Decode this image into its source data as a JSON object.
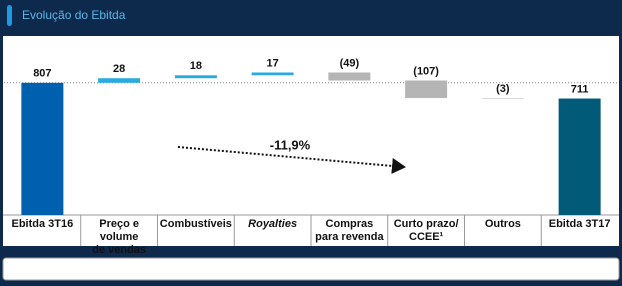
{
  "chart_data": {
    "type": "waterfall",
    "title": "Evolução do Ebitda",
    "categories": [
      "Ebitda 3T16",
      "Preço e volume\nde vendas",
      "Combustíveis",
      "Royalties",
      "Compras\npara revenda",
      "Curto prazo/\nCCEE¹",
      "Outros",
      "Ebitda 3T17"
    ],
    "values": [
      807,
      28,
      18,
      17,
      -49,
      -107,
      -3,
      711
    ],
    "value_labels": [
      "807",
      "28",
      "18",
      "17",
      "(49)",
      "(107)",
      "(3)",
      "711"
    ],
    "totals": [
      true,
      false,
      false,
      false,
      false,
      false,
      false,
      true
    ],
    "colors": [
      "#0060b0",
      "#29abe2",
      "#29abe2",
      "#29abe2",
      "#b5b5b5",
      "#b5b5b5",
      "#b5b5b5",
      "#005a78"
    ],
    "ylim": [
      0,
      1050
    ],
    "annotation": "-11,9%"
  }
}
